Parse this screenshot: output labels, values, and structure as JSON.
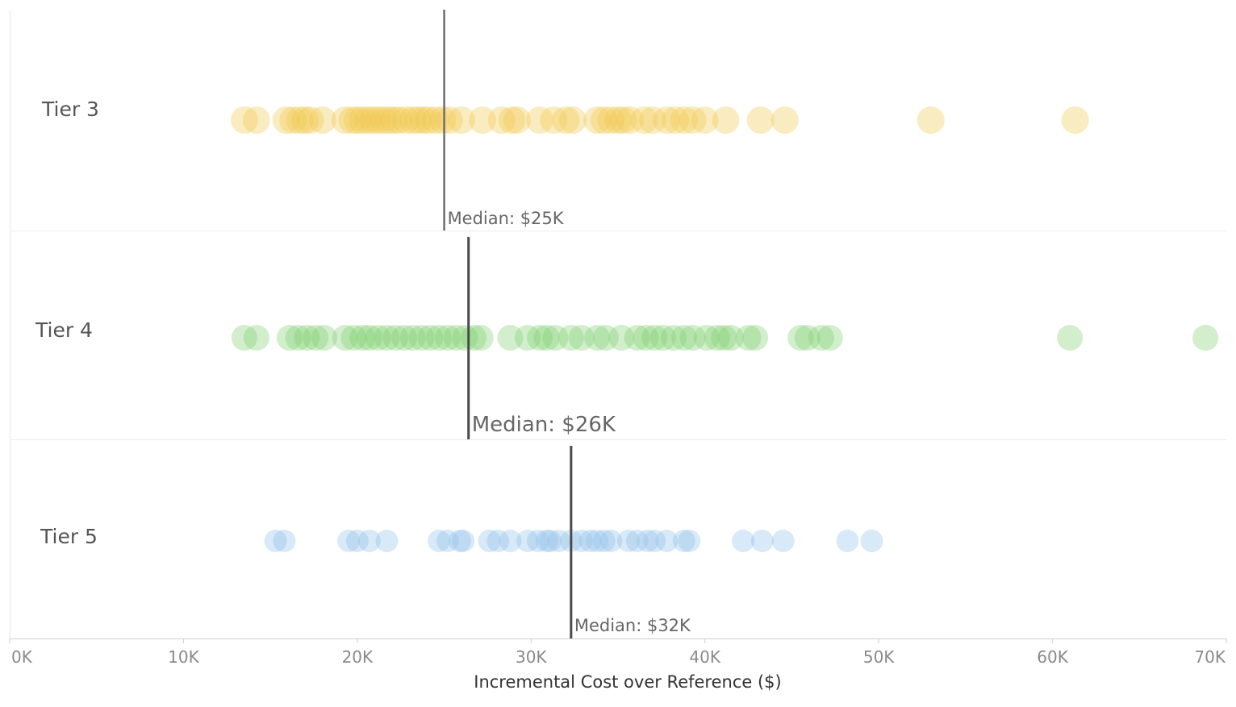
{
  "chart_data": {
    "type": "scatter",
    "title": "",
    "xlabel": "Incremental Cost over Reference ($)",
    "ylabel": "",
    "xlim": [
      0,
      70000
    ],
    "x_ticks": [
      0,
      10000,
      20000,
      30000,
      40000,
      50000,
      60000,
      70000
    ],
    "x_tick_labels": [
      "0K",
      "10K",
      "20K",
      "30K",
      "40K",
      "50K",
      "60K",
      "70K"
    ],
    "grid": false,
    "legend": "none",
    "series": [
      {
        "label": "Tier 3",
        "color": "#f2c94c",
        "median": 25000,
        "median_label": "Median: $25K",
        "x": [
          13500,
          14200,
          15900,
          16300,
          16700,
          17000,
          17300,
          18000,
          19300,
          19700,
          20000,
          20300,
          20600,
          20900,
          21200,
          21500,
          21800,
          22100,
          22400,
          22800,
          23200,
          23500,
          23800,
          24100,
          24500,
          24900,
          25300,
          26000,
          27200,
          28300,
          28900,
          29200,
          30500,
          31300,
          32000,
          32400,
          33800,
          34200,
          34600,
          35000,
          35300,
          35700,
          36500,
          37000,
          37800,
          38300,
          38800,
          39300,
          40000,
          41200,
          43200,
          44600,
          53000,
          61300
        ]
      },
      {
        "label": "Tier 4",
        "color": "#7ecf6e",
        "median": 26400,
        "median_label": "Median: $26K",
        "x": [
          13500,
          14200,
          16100,
          16600,
          17100,
          17600,
          18100,
          19300,
          19800,
          20300,
          20700,
          21200,
          21700,
          22200,
          22700,
          23200,
          23700,
          24200,
          24700,
          25200,
          25700,
          26200,
          26700,
          27100,
          28800,
          29800,
          30500,
          30900,
          31400,
          32300,
          32900,
          33800,
          34300,
          35200,
          36100,
          36600,
          37100,
          37600,
          38200,
          38800,
          39300,
          40100,
          40700,
          41100,
          41500,
          42500,
          42900,
          45500,
          45900,
          46700,
          47200,
          61000,
          68800
        ]
      },
      {
        "label": "Tier 5",
        "color": "#8ec0e8",
        "median": 32300,
        "median_label": "Median: $32K",
        "x": [
          15300,
          15800,
          19500,
          20000,
          20700,
          21700,
          24700,
          25200,
          25900,
          26100,
          27600,
          28100,
          28800,
          29800,
          30400,
          30900,
          31100,
          31600,
          32300,
          32900,
          33400,
          33800,
          34200,
          34600,
          35600,
          36100,
          36700,
          37100,
          37800,
          38800,
          39100,
          42200,
          43300,
          44500,
          48200,
          49600
        ]
      }
    ]
  }
}
